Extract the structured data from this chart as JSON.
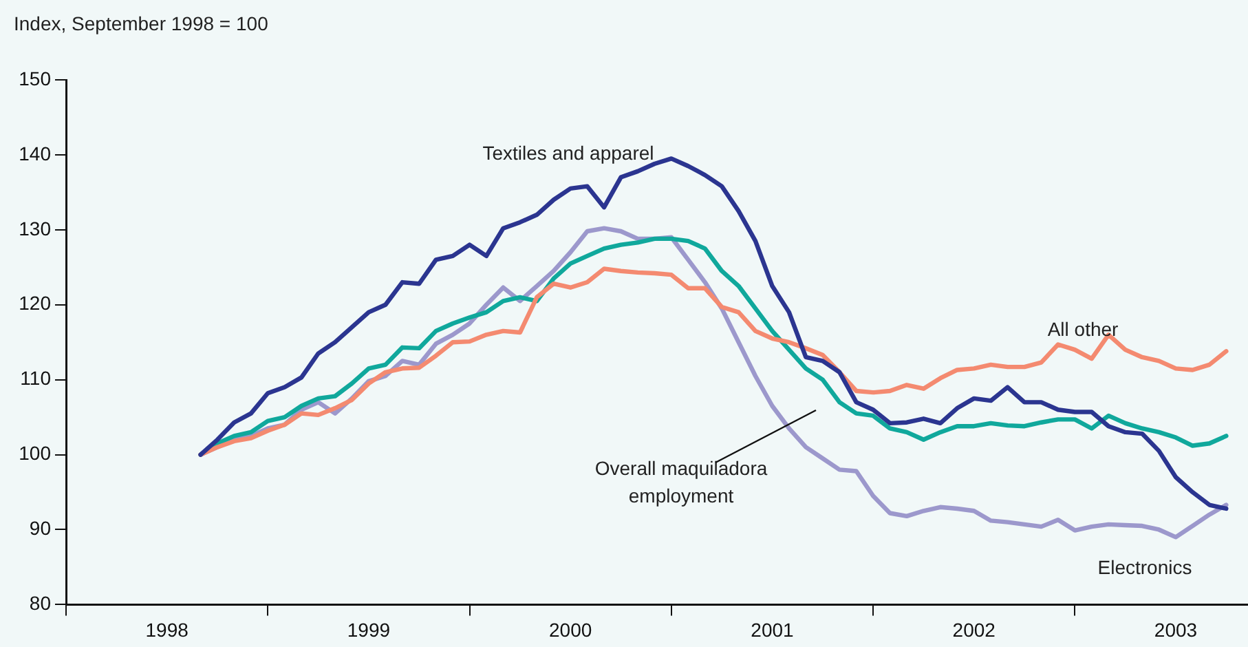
{
  "chart_data": {
    "type": "line",
    "ylabel": "Index, September 1998 = 100",
    "x": [
      "1998-09",
      "1998-10",
      "1998-11",
      "1998-12",
      "1999-01",
      "1999-02",
      "1999-03",
      "1999-04",
      "1999-05",
      "1999-06",
      "1999-07",
      "1999-08",
      "1999-09",
      "1999-10",
      "1999-11",
      "1999-12",
      "2000-01",
      "2000-02",
      "2000-03",
      "2000-04",
      "2000-05",
      "2000-06",
      "2000-07",
      "2000-08",
      "2000-09",
      "2000-10",
      "2000-11",
      "2000-12",
      "2001-01",
      "2001-02",
      "2001-03",
      "2001-04",
      "2001-05",
      "2001-06",
      "2001-07",
      "2001-08",
      "2001-09",
      "2001-10",
      "2001-11",
      "2001-12",
      "2002-01",
      "2002-02",
      "2002-03",
      "2002-04",
      "2002-05",
      "2002-06",
      "2002-07",
      "2002-08",
      "2002-09",
      "2002-10",
      "2002-11",
      "2002-12",
      "2003-01",
      "2003-02",
      "2003-03",
      "2003-04",
      "2003-05",
      "2003-06",
      "2003-07",
      "2003-08",
      "2003-09",
      "2003-10"
    ],
    "series": [
      {
        "name": "Textiles and apparel",
        "color": "#2b3590",
        "values": [
          100,
          102,
          104.3,
          105.5,
          108.2,
          109,
          110.3,
          113.5,
          115,
          117,
          119,
          120,
          123,
          122.8,
          126,
          126.5,
          128,
          126.5,
          130.2,
          131,
          132,
          134,
          135.5,
          135.8,
          133,
          137,
          137.8,
          138.8,
          139.5,
          138.5,
          137.3,
          135.8,
          132.5,
          128.5,
          122.5,
          119,
          113,
          112.5,
          111,
          107,
          106,
          104.2,
          104.3,
          104.8,
          104.2,
          106.2,
          107.5,
          107.2,
          109,
          107,
          107,
          106,
          105.7,
          105.7,
          103.8,
          103,
          102.8,
          100.5,
          97,
          95,
          93.3,
          92.8
        ]
      },
      {
        "name": "All other",
        "color": "#f48a70",
        "values": [
          100,
          101,
          101.8,
          102.2,
          103.2,
          104,
          105.5,
          105.3,
          106.2,
          107.3,
          109.5,
          111,
          111.5,
          111.6,
          113.2,
          115,
          115.1,
          116,
          116.5,
          116.3,
          121,
          122.8,
          122.3,
          123,
          124.8,
          124.5,
          124.3,
          124.2,
          124,
          122.2,
          122.2,
          119.7,
          119,
          116.5,
          115.5,
          115,
          114.2,
          113.3,
          111,
          108.5,
          108.3,
          108.5,
          109.3,
          108.8,
          110.2,
          111.3,
          111.5,
          112,
          111.7,
          111.7,
          112.3,
          114.7,
          114,
          112.8,
          116,
          114,
          113,
          112.5,
          111.5,
          111.3,
          112,
          113.8
        ]
      },
      {
        "name": "Overall maquiladora employment",
        "color": "#10a89c",
        "values": [
          100,
          101.5,
          102.5,
          103,
          104.5,
          105,
          106.5,
          107.5,
          107.8,
          109.5,
          111.5,
          112,
          114.3,
          114.2,
          116.5,
          117.5,
          118.3,
          119,
          120.5,
          121,
          120.5,
          123.5,
          125.5,
          126.5,
          127.5,
          128,
          128.3,
          128.8,
          128.8,
          128.5,
          127.5,
          124.5,
          122.5,
          119.5,
          116.5,
          114,
          111.5,
          110,
          107,
          105.5,
          105.2,
          103.5,
          103,
          102,
          103,
          103.8,
          103.8,
          104.2,
          103.9,
          103.8,
          104.3,
          104.7,
          104.7,
          103.5,
          105.2,
          104.2,
          103.5,
          103,
          102.3,
          101.2,
          101.5,
          102.5
        ]
      },
      {
        "name": "Electronics",
        "color": "#9c98cc",
        "values": [
          100,
          101,
          102,
          102.5,
          103.5,
          104,
          106,
          107,
          105.5,
          107.5,
          109.8,
          110.5,
          112.5,
          112,
          114.8,
          116,
          117.5,
          120,
          122.3,
          120.5,
          122.5,
          124.5,
          127,
          129.8,
          130.2,
          129.8,
          128.8,
          128.8,
          129,
          126,
          123,
          119.5,
          115,
          110.5,
          106.5,
          103.5,
          101,
          99.5,
          98,
          97.8,
          94.5,
          92.2,
          91.8,
          92.5,
          93,
          92.8,
          92.5,
          91.2,
          91,
          90.7,
          90.4,
          91.3,
          89.9,
          90.4,
          90.7,
          90.6,
          90.5,
          90,
          89,
          90.5,
          92,
          93.3
        ]
      }
    ],
    "xlim": [
      "1998",
      "2003-11-10"
    ],
    "xticks": [
      {
        "value": "1998",
        "label": null
      },
      {
        "value": "1998-07",
        "label": "1998"
      },
      {
        "value": "1999",
        "label": null
      },
      {
        "value": "1999-07",
        "label": "1999"
      },
      {
        "value": "2000",
        "label": null
      },
      {
        "value": "2000-07",
        "label": "2000"
      },
      {
        "value": "2001",
        "label": null
      },
      {
        "value": "2001-07",
        "label": "2001"
      },
      {
        "value": "2002",
        "label": null
      },
      {
        "value": "2002-07",
        "label": "2002"
      },
      {
        "value": "2003",
        "label": null
      },
      {
        "value": "2003-07",
        "label": "2003"
      }
    ],
    "ylim": [
      80,
      150
    ],
    "yticks": [
      80,
      90,
      100,
      110,
      120,
      130,
      140,
      150
    ],
    "grid": false,
    "legend": false,
    "marker": "none",
    "line_style": "solid"
  }
}
